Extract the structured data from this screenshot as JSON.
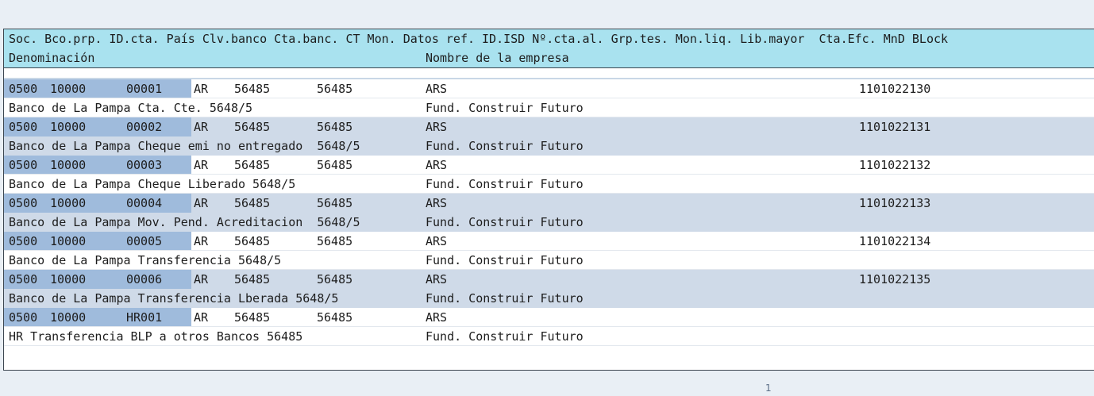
{
  "header": {
    "line1": "Soc. Bco.prp. ID.cta. País Clv.banco Cta.banc. CT Mon. Datos ref. ID.ISD Nº.cta.al. Grp.tes. Mon.liq. Lib.mayor  Cta.Efc. MnD BLock",
    "line2_left": "Denominación",
    "line2_right": "Nombre de la empresa"
  },
  "rows": [
    {
      "soc": "0500",
      "bco": "10000",
      "id": "00001",
      "pais": "AR",
      "clv": "56485",
      "cta": "56485",
      "mon": "ARS",
      "lib": "1101022130",
      "denom": "Banco de La Pampa Cta. Cte. 5648/5",
      "empresa": "Fund. Construir Futuro"
    },
    {
      "soc": "0500",
      "bco": "10000",
      "id": "00002",
      "pais": "AR",
      "clv": "56485",
      "cta": "56485",
      "mon": "ARS",
      "lib": "1101022131",
      "denom": "Banco de La Pampa Cheque emi no entregado  5648/5",
      "empresa": "Fund. Construir Futuro"
    },
    {
      "soc": "0500",
      "bco": "10000",
      "id": "00003",
      "pais": "AR",
      "clv": "56485",
      "cta": "56485",
      "mon": "ARS",
      "lib": "1101022132",
      "denom": "Banco de La Pampa Cheque Liberado 5648/5",
      "empresa": "Fund. Construir Futuro"
    },
    {
      "soc": "0500",
      "bco": "10000",
      "id": "00004",
      "pais": "AR",
      "clv": "56485",
      "cta": "56485",
      "mon": "ARS",
      "lib": "1101022133",
      "denom": "Banco de La Pampa Mov. Pend. Acreditacion  5648/5",
      "empresa": "Fund. Construir Futuro"
    },
    {
      "soc": "0500",
      "bco": "10000",
      "id": "00005",
      "pais": "AR",
      "clv": "56485",
      "cta": "56485",
      "mon": "ARS",
      "lib": "1101022134",
      "denom": "Banco de La Pampa Transferencia 5648/5",
      "empresa": "Fund. Construir Futuro"
    },
    {
      "soc": "0500",
      "bco": "10000",
      "id": "00006",
      "pais": "AR",
      "clv": "56485",
      "cta": "56485",
      "mon": "ARS",
      "lib": "1101022135",
      "denom": "Banco de La Pampa Transferencia Lberada 5648/5",
      "empresa": "Fund. Construir Futuro"
    },
    {
      "soc": "0500",
      "bco": "10000",
      "id": "HR001",
      "pais": "AR",
      "clv": "56485",
      "cta": "56485",
      "mon": "ARS",
      "lib": "",
      "denom": "HR Transferencia BLP a otros Bancos 56485",
      "empresa": "Fund. Construir Futuro"
    }
  ],
  "footer_mark": "1"
}
